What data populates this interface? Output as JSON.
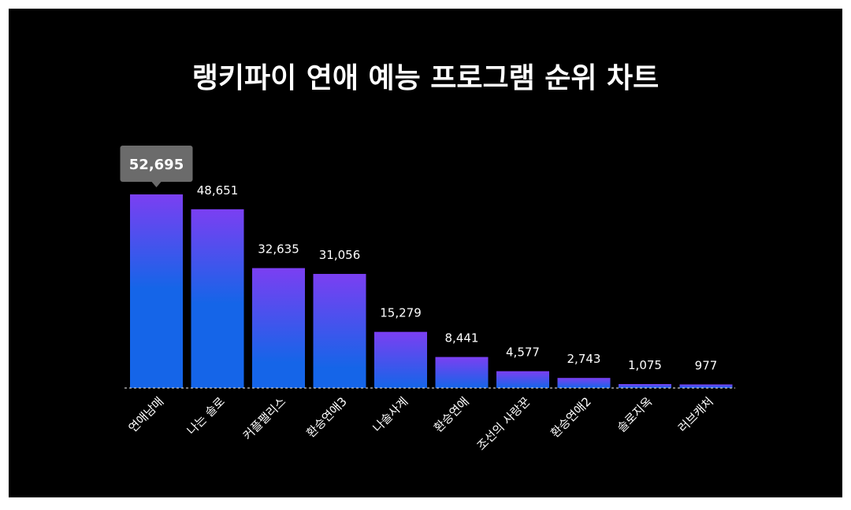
{
  "title": "랭키파이 연애 예능 프로그램 순위 차트",
  "colors": {
    "background": "#000000",
    "bar_top": "#7b3ff2",
    "bar_bottom": "#1565e8",
    "tooltip_bg": "#6b6b6b",
    "text": "#ffffff"
  },
  "chart_data": {
    "type": "bar",
    "title": "랭키파이 연애 예능 프로그램 순위 차트",
    "categories": [
      "연애남매",
      "나는 솔로",
      "커플팰리스",
      "환승연애3",
      "나솔사계",
      "환승연애",
      "조선의 사랑꾼",
      "환승연애2",
      "솔로지옥",
      "러브캐처"
    ],
    "values": [
      52695,
      48651,
      32635,
      31056,
      15279,
      8441,
      4577,
      2743,
      1075,
      977
    ],
    "value_labels": [
      "52,695",
      "48,651",
      "32,635",
      "31,056",
      "15,279",
      "8,441",
      "4,577",
      "2,743",
      "1,075",
      "977"
    ],
    "highlighted_index": 0,
    "ylim": [
      0,
      52695
    ],
    "grid": false,
    "xlabel": "",
    "ylabel": ""
  }
}
